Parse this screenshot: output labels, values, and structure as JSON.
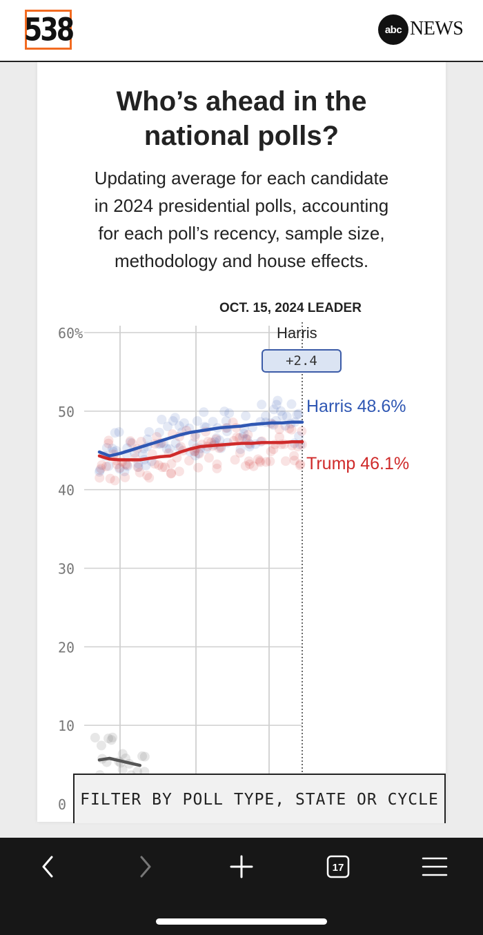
{
  "header": {
    "logo_text": "538",
    "abc_text": "abc",
    "news_text": "NEWS"
  },
  "article": {
    "title_line1": "Who’s ahead in the",
    "title_line2": "national polls?",
    "subtitle_line1": "Updating average for each candidate",
    "subtitle_line2": "in 2024 presidential polls, accounting",
    "subtitle_line3": "for each poll’s recency, sample size,",
    "subtitle_line4": "methodology and house effects."
  },
  "leader": {
    "heading": "OCT. 15, 2024 LEADER",
    "name": "Harris",
    "margin": "+2.4"
  },
  "chart_data": {
    "type": "line",
    "title": "",
    "xlabel": "",
    "ylabel": "",
    "ylim": [
      0,
      60
    ],
    "y_ticks": [
      "0",
      "10",
      "20",
      "30",
      "40",
      "50",
      "60%"
    ],
    "grid": true,
    "series": [
      {
        "name": "Harris",
        "color": "#2f57b3",
        "label": "Harris 48.6%",
        "values": [
          44.8,
          44.3,
          44.6,
          45.0,
          45.4,
          45.8,
          46.2,
          46.6,
          47.0,
          47.3,
          47.5,
          47.7,
          47.9,
          48.0,
          48.1,
          48.3,
          48.4,
          48.5,
          48.5,
          48.6,
          48.6
        ]
      },
      {
        "name": "Trump",
        "color": "#cf2a2a",
        "label": "Trump 46.1%",
        "values": [
          44.3,
          43.9,
          43.8,
          43.8,
          43.8,
          44.0,
          44.2,
          44.3,
          44.8,
          45.2,
          45.5,
          45.6,
          45.7,
          45.8,
          45.9,
          45.9,
          46.0,
          46.0,
          46.0,
          46.1,
          46.1
        ]
      },
      {
        "color": "#555555",
        "values": [
          5.6,
          5.8,
          5.5,
          5.2,
          4.9
        ]
      }
    ]
  },
  "filter": {
    "label": "FILTER BY POLL TYPE, STATE OR CYCLE"
  },
  "toolbar": {
    "tabs_count": "17"
  }
}
